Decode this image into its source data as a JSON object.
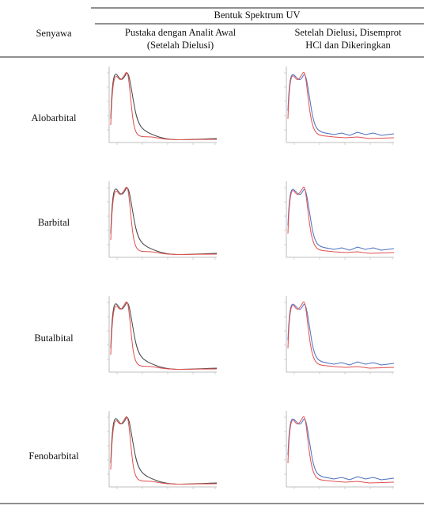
{
  "table": {
    "header": {
      "group": "Bentuk Spektrum UV",
      "columns": [
        "Senyawa",
        [
          "Pustaka dengan Analit  Awal",
          "(Setelah Dielusi)"
        ],
        [
          "Setelah Dielusi, Disemprot",
          "HCl dan Dikeringkan"
        ]
      ]
    },
    "rows": [
      "Alobarbital",
      "Barbital",
      "Butalbital",
      "Fenobarbital"
    ]
  }
}
